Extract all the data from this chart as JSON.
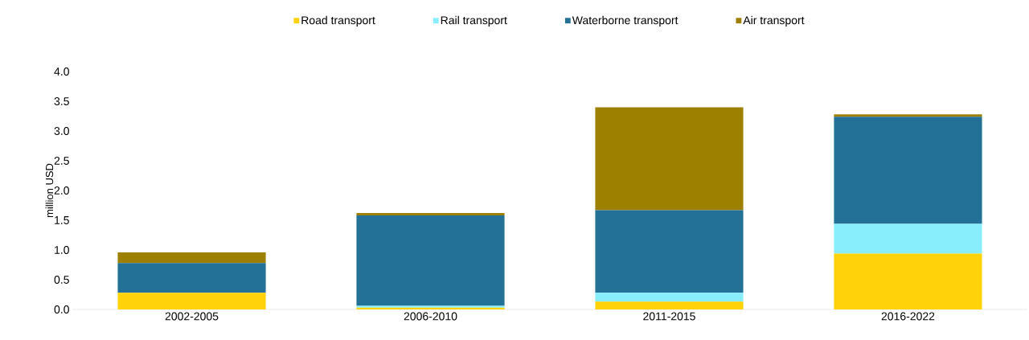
{
  "chart_data": {
    "type": "bar",
    "stacked": true,
    "ylabel": "million USD",
    "categories": [
      "2002-2005",
      "2006-2010",
      "2011-2015",
      "2016-2022"
    ],
    "series": [
      {
        "name": "Road transport",
        "color": "#ffd20a",
        "values": [
          0.28,
          0.03,
          0.13,
          0.94
        ]
      },
      {
        "name": "Rail transport",
        "color": "#88eefc",
        "values": [
          0,
          0.03,
          0.15,
          0.5
        ]
      },
      {
        "name": "Waterborne transport",
        "color": "#237196",
        "values": [
          0.5,
          1.52,
          1.39,
          1.8
        ]
      },
      {
        "name": "Air transport",
        "color": "#9e8000",
        "values": [
          0.18,
          0.04,
          1.73,
          0.04
        ]
      }
    ],
    "ylim": [
      0,
      4
    ],
    "yticks": [
      {
        "value": 0,
        "label": "0.0"
      },
      {
        "value": 0.5,
        "label": "0.5"
      },
      {
        "value": 1,
        "label": "1.0"
      },
      {
        "value": 1.5,
        "label": "1.5"
      },
      {
        "value": 2,
        "label": "2.0"
      },
      {
        "value": 2.5,
        "label": "2.5"
      },
      {
        "value": 3,
        "label": "3.0"
      },
      {
        "value": 3.5,
        "label": "3.5"
      },
      {
        "value": 4,
        "label": "4.0"
      }
    ],
    "legend": "top"
  }
}
